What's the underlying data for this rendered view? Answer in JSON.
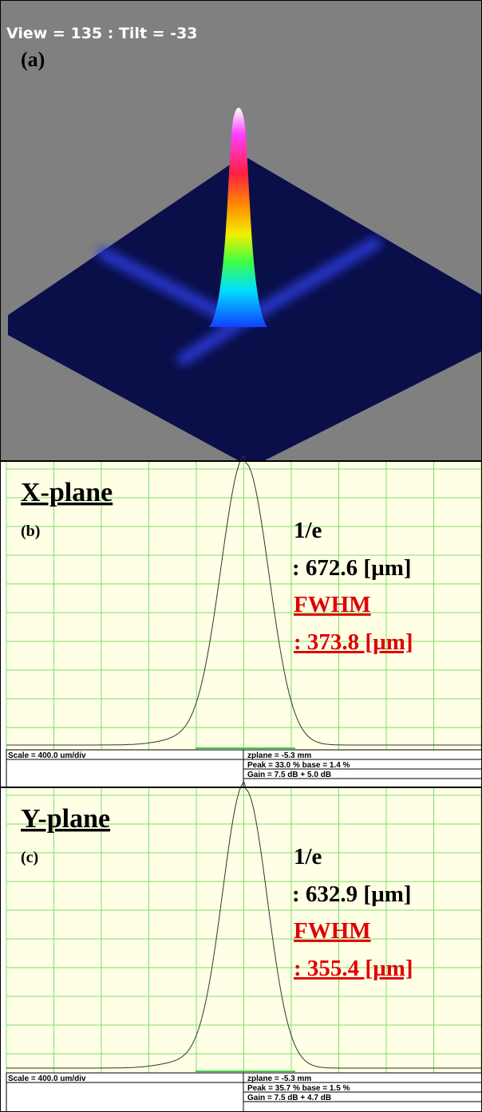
{
  "view3d": {
    "caption": "View = 135 : Tilt = -33",
    "label": "(a)"
  },
  "profiles": [
    {
      "title": "X-plane",
      "label": "(b)",
      "e_label": "1/e",
      "e_value": ": 672.6 [µm]",
      "fwhm_label": "FWHM",
      "fwhm_value": ": 373.8 [µm]",
      "scale": "Scale = 400.0 um/div",
      "zplane": "zplane = -5.3 mm",
      "peak": "Peak = 33.0 % base = 1.4 %",
      "gain": "Gain = 7.5 dB + 5.0 dB"
    },
    {
      "title": "Y-plane",
      "label": "(c)",
      "e_label": "1/e",
      "e_value": ": 632.9 [µm]",
      "fwhm_label": "FWHM",
      "fwhm_value": ": 355.4 [µm]",
      "scale": "Scale = 400.0 um/div",
      "zplane": "zplane = -5.3 mm",
      "peak": "Peak = 35.7 % base = 1.5 %",
      "gain": "Gain = 7.5 dB + 4.7 dB"
    }
  ]
}
